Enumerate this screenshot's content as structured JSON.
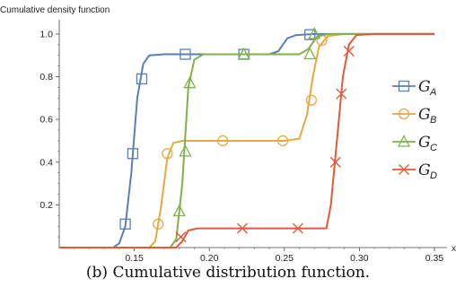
{
  "chart_data": {
    "type": "line",
    "title": "",
    "ylabel": "Cumulative density function",
    "xlabel": "x",
    "xlim": [
      0.1,
      0.35
    ],
    "ylim": [
      0,
      1.05
    ],
    "xticks": [
      0.15,
      0.2,
      0.25,
      0.3,
      0.35
    ],
    "xtick_labels": [
      "0.15",
      "0.20",
      "0.25",
      "0.30",
      "0.35"
    ],
    "yticks": [
      0.2,
      0.4,
      0.6,
      0.8,
      1.0
    ],
    "ytick_labels": [
      "0.2",
      "0.4",
      "0.6",
      "0.8",
      "1.0"
    ],
    "grid": false,
    "legend_position": "right",
    "series": [
      {
        "name": "G_A",
        "label_main": "G",
        "label_sub": "A",
        "color": "#5a7fb5",
        "marker": "square",
        "curve": [
          [
            0.1,
            0
          ],
          [
            0.136,
            0
          ],
          [
            0.14,
            0.02
          ],
          [
            0.144,
            0.1
          ],
          [
            0.148,
            0.35
          ],
          [
            0.152,
            0.7
          ],
          [
            0.156,
            0.86
          ],
          [
            0.16,
            0.9
          ],
          [
            0.17,
            0.905
          ],
          [
            0.24,
            0.905
          ],
          [
            0.246,
            0.92
          ],
          [
            0.252,
            0.98
          ],
          [
            0.258,
            0.995
          ],
          [
            0.27,
            1.0
          ],
          [
            0.35,
            1.0
          ]
        ],
        "points": [
          [
            0.144,
            0.11
          ],
          [
            0.149,
            0.44
          ],
          [
            0.155,
            0.79
          ],
          [
            0.184,
            0.905
          ],
          [
            0.223,
            0.905
          ],
          [
            0.267,
            0.997
          ]
        ]
      },
      {
        "name": "G_B",
        "label_main": "G",
        "label_sub": "B",
        "color": "#e6a93e",
        "marker": "circle",
        "curve": [
          [
            0.1,
            0
          ],
          [
            0.16,
            0
          ],
          [
            0.164,
            0.03
          ],
          [
            0.168,
            0.2
          ],
          [
            0.172,
            0.42
          ],
          [
            0.176,
            0.49
          ],
          [
            0.182,
            0.5
          ],
          [
            0.25,
            0.5
          ],
          [
            0.26,
            0.51
          ],
          [
            0.265,
            0.62
          ],
          [
            0.269,
            0.8
          ],
          [
            0.273,
            0.94
          ],
          [
            0.279,
            0.99
          ],
          [
            0.29,
            1.0
          ],
          [
            0.35,
            1.0
          ]
        ],
        "points": [
          [
            0.166,
            0.11
          ],
          [
            0.172,
            0.44
          ],
          [
            0.209,
            0.5
          ],
          [
            0.249,
            0.5
          ],
          [
            0.268,
            0.69
          ],
          [
            0.275,
            0.97
          ]
        ]
      },
      {
        "name": "G_C",
        "label_main": "G",
        "label_sub": "C",
        "color": "#80b14b",
        "marker": "triangle",
        "curve": [
          [
            0.1,
            0
          ],
          [
            0.174,
            0
          ],
          [
            0.178,
            0.04
          ],
          [
            0.182,
            0.3
          ],
          [
            0.186,
            0.75
          ],
          [
            0.19,
            0.88
          ],
          [
            0.196,
            0.905
          ],
          [
            0.26,
            0.905
          ],
          [
            0.266,
            0.93
          ],
          [
            0.272,
            0.99
          ],
          [
            0.28,
            1.0
          ],
          [
            0.35,
            1.0
          ]
        ],
        "points": [
          [
            0.18,
            0.17
          ],
          [
            0.184,
            0.45
          ],
          [
            0.187,
            0.77
          ],
          [
            0.223,
            0.905
          ],
          [
            0.267,
            0.905
          ],
          [
            0.27,
            1.0
          ]
        ]
      },
      {
        "name": "G_D",
        "label_main": "G",
        "label_sub": "D",
        "color": "#e15a3a",
        "marker": "x",
        "curve": [
          [
            0.1,
            0
          ],
          [
            0.178,
            0
          ],
          [
            0.182,
            0.03
          ],
          [
            0.186,
            0.08
          ],
          [
            0.192,
            0.09
          ],
          [
            0.278,
            0.09
          ],
          [
            0.281,
            0.2
          ],
          [
            0.285,
            0.5
          ],
          [
            0.289,
            0.8
          ],
          [
            0.293,
            0.95
          ],
          [
            0.298,
            0.995
          ],
          [
            0.31,
            1.0
          ],
          [
            0.35,
            1.0
          ]
        ],
        "points": [
          [
            0.181,
            0.05
          ],
          [
            0.222,
            0.09
          ],
          [
            0.259,
            0.09
          ],
          [
            0.284,
            0.4
          ],
          [
            0.288,
            0.72
          ],
          [
            0.293,
            0.92
          ]
        ]
      }
    ]
  },
  "caption": "(b) Cumulative distribution function."
}
